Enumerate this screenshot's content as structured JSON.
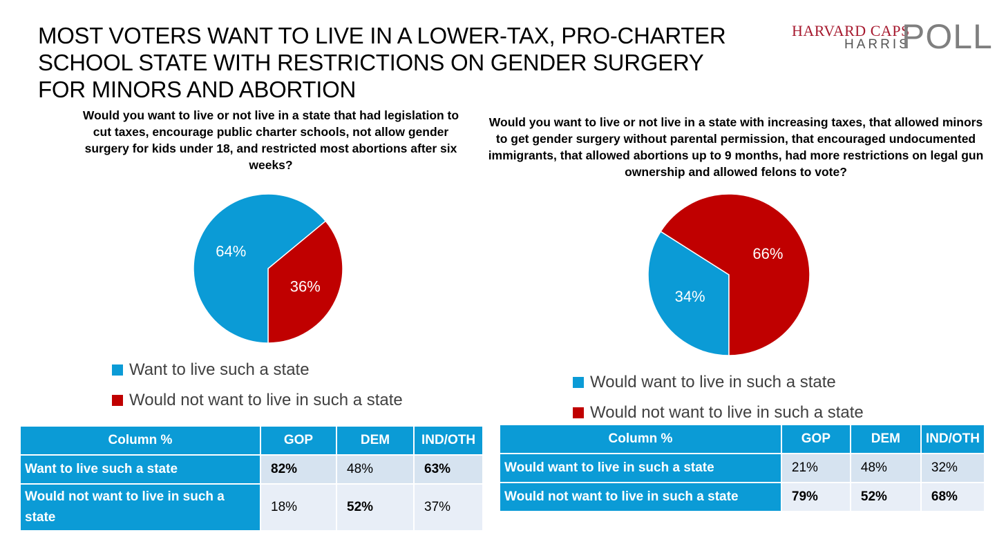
{
  "header": {
    "title": "MOST VOTERS WANT TO LIVE IN A LOWER-TAX, PRO-CHARTER SCHOOL STATE WITH RESTRICTIONS ON GENDER SURGERY FOR MINORS AND ABORTION",
    "logo_line1": "HARVARD CAPS",
    "logo_line2": "HARRIS",
    "logo_big": "POLL"
  },
  "colors": {
    "blue": "#0b9bd6",
    "red": "#c00000",
    "light_blue_row": "#d6e3f0",
    "lighter_row": "#e8eef7"
  },
  "chart_data": [
    {
      "type": "pie",
      "title": "Would you want to live or not live in a state that had legislation to cut taxes, encourage public charter schools, not allow gender surgery for kids under 18, and restricted most abortions after six weeks?",
      "slices": [
        {
          "label": "Want to live such a state",
          "value": 64,
          "display": "64%",
          "color": "#0b9bd6"
        },
        {
          "label": "Would not want to live in such a state",
          "value": 36,
          "display": "36%",
          "color": "#c00000"
        }
      ],
      "legend_position": "bottom"
    },
    {
      "type": "pie",
      "title": "Would you want to live or not live in a state with increasing taxes, that allowed minors to get gender surgery without parental permission, that encouraged undocumented immigrants, that allowed abortions up to 9 months, had more restrictions on legal gun ownership and allowed felons to vote?",
      "slices": [
        {
          "label": "Would want to live in such a state",
          "value": 34,
          "display": "34%",
          "color": "#0b9bd6"
        },
        {
          "label": "Would not want to live in such a state",
          "value": 66,
          "display": "66%",
          "color": "#c00000"
        }
      ],
      "legend_position": "bottom"
    }
  ],
  "tables": [
    {
      "headers": [
        "Column %",
        "GOP",
        "DEM",
        "IND/OTH"
      ],
      "rows": [
        {
          "label": "Want to live such a state",
          "values": [
            "82%",
            "48%",
            "63%"
          ]
        },
        {
          "label": "Would not want to live in such a state",
          "values": [
            "18%",
            "52%",
            "37%"
          ]
        }
      ]
    },
    {
      "headers": [
        "Column %",
        "GOP",
        "DEM",
        "IND/OTH"
      ],
      "rows": [
        {
          "label": "Would want to live in such a state",
          "values": [
            "21%",
            "48%",
            "32%"
          ]
        },
        {
          "label": "Would not want to live in such a state",
          "values": [
            "79%",
            "52%",
            "68%"
          ]
        }
      ]
    }
  ]
}
